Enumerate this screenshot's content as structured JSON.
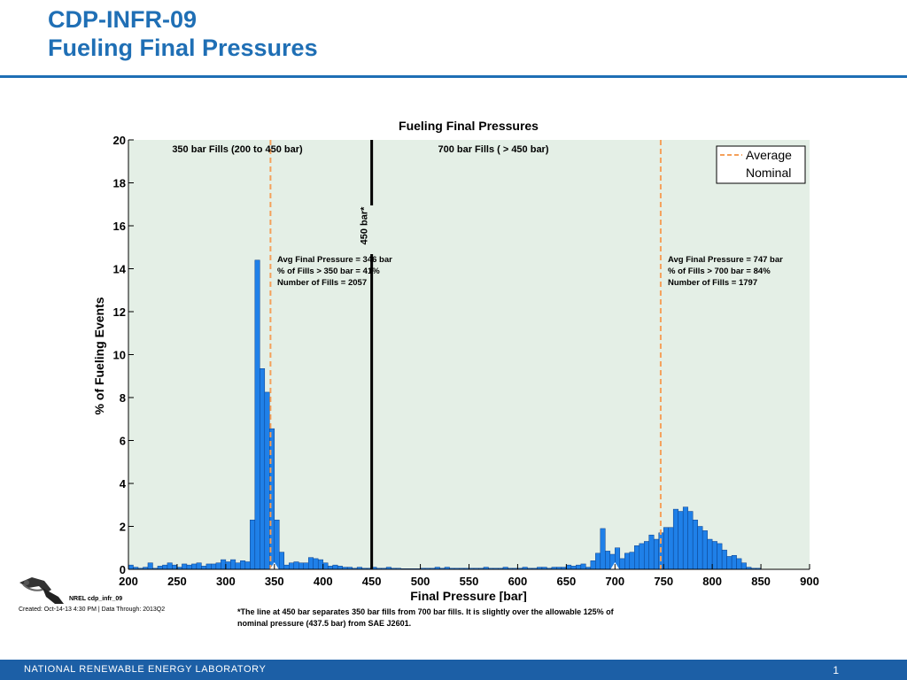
{
  "slide": {
    "title_line1": "CDP-INFR-09",
    "title_line2": "Fueling Final Pressures"
  },
  "chart_data": {
    "type": "bar",
    "title": "Fueling Final Pressures",
    "xlabel": "Final Pressure [bar]",
    "ylabel": "% of Fueling Events",
    "xlim": [
      200,
      900
    ],
    "ylim": [
      0,
      20
    ],
    "xticks": [
      200,
      250,
      300,
      350,
      400,
      450,
      500,
      550,
      600,
      650,
      700,
      750,
      800,
      850,
      900
    ],
    "yticks": [
      0,
      2,
      4,
      6,
      8,
      10,
      12,
      14,
      16,
      18,
      20
    ],
    "bin_width": 5,
    "background_color": "#e4efe6",
    "bar_color": "#1f80e8",
    "bins": [
      [
        200,
        0.2
      ],
      [
        205,
        0.1
      ],
      [
        210,
        0.05
      ],
      [
        215,
        0.1
      ],
      [
        220,
        0.3
      ],
      [
        225,
        0.05
      ],
      [
        230,
        0.15
      ],
      [
        235,
        0.2
      ],
      [
        240,
        0.3
      ],
      [
        245,
        0.2
      ],
      [
        250,
        0.1
      ],
      [
        255,
        0.25
      ],
      [
        260,
        0.2
      ],
      [
        265,
        0.25
      ],
      [
        270,
        0.3
      ],
      [
        275,
        0.15
      ],
      [
        280,
        0.25
      ],
      [
        285,
        0.25
      ],
      [
        290,
        0.3
      ],
      [
        295,
        0.45
      ],
      [
        300,
        0.35
      ],
      [
        305,
        0.45
      ],
      [
        310,
        0.3
      ],
      [
        315,
        0.4
      ],
      [
        320,
        0.35
      ],
      [
        325,
        2.3
      ],
      [
        330,
        14.4
      ],
      [
        335,
        9.35
      ],
      [
        340,
        8.25
      ],
      [
        345,
        6.55
      ],
      [
        350,
        2.3
      ],
      [
        355,
        0.8
      ],
      [
        360,
        0.2
      ],
      [
        365,
        0.3
      ],
      [
        370,
        0.35
      ],
      [
        375,
        0.3
      ],
      [
        380,
        0.3
      ],
      [
        385,
        0.55
      ],
      [
        390,
        0.5
      ],
      [
        395,
        0.45
      ],
      [
        400,
        0.3
      ],
      [
        405,
        0.15
      ],
      [
        410,
        0.2
      ],
      [
        415,
        0.15
      ],
      [
        420,
        0.1
      ],
      [
        425,
        0.1
      ],
      [
        430,
        0.05
      ],
      [
        435,
        0.1
      ],
      [
        440,
        0.05
      ],
      [
        445,
        0.05
      ],
      [
        450,
        0.1
      ],
      [
        455,
        0.05
      ],
      [
        460,
        0.05
      ],
      [
        465,
        0.1
      ],
      [
        470,
        0.05
      ],
      [
        475,
        0.05
      ],
      [
        480,
        0.03
      ],
      [
        485,
        0.03
      ],
      [
        490,
        0.03
      ],
      [
        495,
        0.03
      ],
      [
        500,
        0.05
      ],
      [
        505,
        0.05
      ],
      [
        510,
        0.05
      ],
      [
        515,
        0.1
      ],
      [
        520,
        0.05
      ],
      [
        525,
        0.1
      ],
      [
        530,
        0.05
      ],
      [
        535,
        0.05
      ],
      [
        540,
        0.05
      ],
      [
        545,
        0.05
      ],
      [
        550,
        0.05
      ],
      [
        555,
        0.05
      ],
      [
        560,
        0.05
      ],
      [
        565,
        0.1
      ],
      [
        570,
        0.05
      ],
      [
        575,
        0.05
      ],
      [
        580,
        0.05
      ],
      [
        585,
        0.1
      ],
      [
        590,
        0.05
      ],
      [
        595,
        0.05
      ],
      [
        600,
        0.05
      ],
      [
        605,
        0.1
      ],
      [
        610,
        0.05
      ],
      [
        615,
        0.05
      ],
      [
        620,
        0.1
      ],
      [
        625,
        0.1
      ],
      [
        630,
        0.05
      ],
      [
        635,
        0.1
      ],
      [
        640,
        0.1
      ],
      [
        645,
        0.1
      ],
      [
        650,
        0.2
      ],
      [
        655,
        0.15
      ],
      [
        660,
        0.2
      ],
      [
        665,
        0.25
      ],
      [
        670,
        0.1
      ],
      [
        675,
        0.4
      ],
      [
        680,
        0.75
      ],
      [
        685,
        1.9
      ],
      [
        690,
        0.85
      ],
      [
        695,
        0.7
      ],
      [
        700,
        1.0
      ],
      [
        705,
        0.5
      ],
      [
        710,
        0.75
      ],
      [
        715,
        0.8
      ],
      [
        720,
        1.1
      ],
      [
        725,
        1.2
      ],
      [
        730,
        1.3
      ],
      [
        735,
        1.6
      ],
      [
        740,
        1.4
      ],
      [
        745,
        1.7
      ],
      [
        750,
        1.95
      ],
      [
        755,
        1.95
      ],
      [
        760,
        2.8
      ],
      [
        765,
        2.7
      ],
      [
        770,
        2.9
      ],
      [
        775,
        2.7
      ],
      [
        780,
        2.3
      ],
      [
        785,
        2.0
      ],
      [
        790,
        1.8
      ],
      [
        795,
        1.4
      ],
      [
        800,
        1.3
      ],
      [
        805,
        1.2
      ],
      [
        810,
        0.9
      ],
      [
        815,
        0.6
      ],
      [
        820,
        0.65
      ],
      [
        825,
        0.5
      ],
      [
        830,
        0.3
      ],
      [
        835,
        0.1
      ],
      [
        840,
        0.05
      ],
      [
        845,
        0.05
      ]
    ],
    "reference_line": {
      "x": 450,
      "label": "450 bar*"
    },
    "averages": [
      {
        "x": 346,
        "color": "#f5a05a"
      },
      {
        "x": 747,
        "color": "#f5a05a"
      }
    ],
    "nominals": [
      350,
      700
    ],
    "regions": [
      {
        "label": "350 bar Fills (200 to 450 bar)"
      },
      {
        "label": "700 bar Fills ( > 450 bar)"
      }
    ],
    "annotations": [
      {
        "lines": [
          "Avg Final Pressure = 346 bar",
          "% of Fills > 350 bar = 41%",
          "Number of Fills = 2057"
        ]
      },
      {
        "lines": [
          "Avg Final Pressure = 747 bar",
          "% of Fills > 700 bar = 84%",
          "Number of Fills = 1797"
        ]
      }
    ],
    "legend": {
      "position": "top-right",
      "items": [
        {
          "label": "Average",
          "marker": "dashed-line"
        },
        {
          "label": "Nominal",
          "marker": "triangle"
        }
      ]
    }
  },
  "footer": {
    "nrel_id": "NREL cdp_infr_09",
    "created": "Created: Oct-14-13  4:30 PM | Data Through: 2013Q2",
    "footnote": "*The line at 450 bar separates 350 bar fills from 700 bar fills.  It is slightly over the allowable 125% of nominal pressure (437.5 bar) from SAE J2601.",
    "org_name": "NATIONAL RENEWABLE ENERGY LABORATORY",
    "page_number": "1"
  }
}
